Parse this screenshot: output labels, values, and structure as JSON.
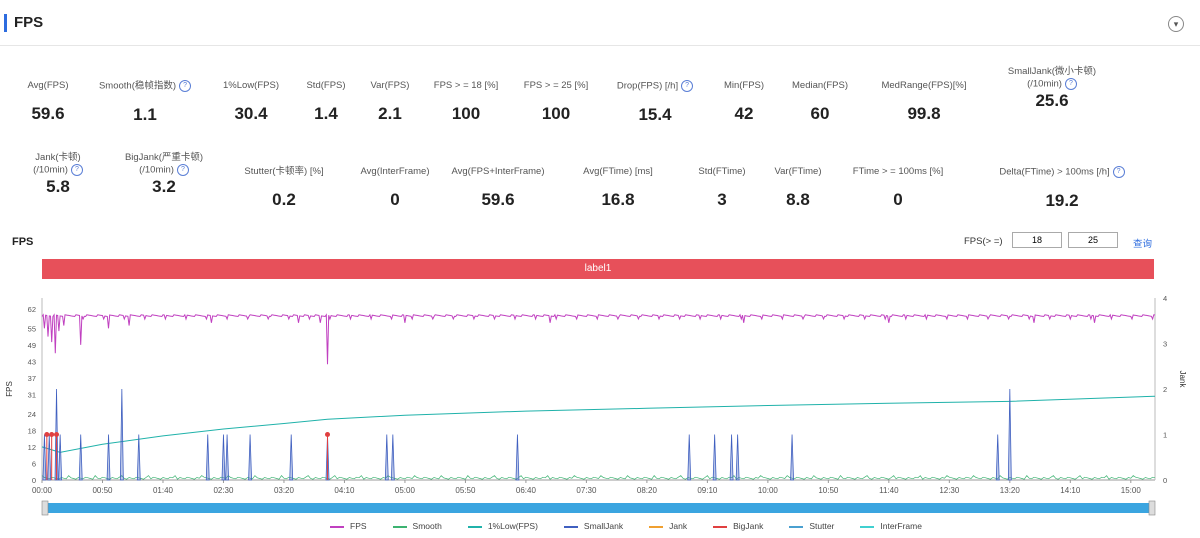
{
  "header": {
    "title": "FPS",
    "collapse_icon": "chevron-down-icon"
  },
  "stats_row1": [
    {
      "label": "Avg(FPS)",
      "value": "59.6",
      "help": false
    },
    {
      "label": "Smooth(稳帧指数)",
      "value": "1.1",
      "help": true
    },
    {
      "label": "1%Low(FPS)",
      "value": "30.4",
      "help": false
    },
    {
      "label": "Std(FPS)",
      "value": "1.4",
      "help": false
    },
    {
      "label": "Var(FPS)",
      "value": "2.1",
      "help": false
    },
    {
      "label": "FPS > = 18 [%]",
      "value": "100",
      "help": false
    },
    {
      "label": "FPS > = 25 [%]",
      "value": "100",
      "help": false
    },
    {
      "label": "Drop(FPS) [/h]",
      "value": "15.4",
      "help": true
    },
    {
      "label": "Min(FPS)",
      "value": "42",
      "help": false
    },
    {
      "label": "Median(FPS)",
      "value": "60",
      "help": false
    },
    {
      "label": "MedRange(FPS)[%]",
      "value": "99.8",
      "help": false
    },
    {
      "label": "SmallJank(微小卡顿)",
      "label2": "(/10min)",
      "value": "25.6",
      "help": true
    }
  ],
  "stats_row2": [
    {
      "label": "Jank(卡顿)",
      "label2": "(/10min)",
      "value": "5.8",
      "help": true
    },
    {
      "label": "BigJank(严重卡顿)",
      "label2": "(/10min)",
      "value": "3.2",
      "help": true
    },
    {
      "label": "Stutter(卡顿率) [%]",
      "value": "0.2",
      "help": false
    },
    {
      "label": "Avg(InterFrame)",
      "value": "0",
      "help": false
    },
    {
      "label": "Avg(FPS+InterFrame)",
      "value": "59.6",
      "help": false
    },
    {
      "label": "Avg(FTime) [ms]",
      "value": "16.8",
      "help": false
    },
    {
      "label": "Std(FTime)",
      "value": "3",
      "help": false
    },
    {
      "label": "Var(FTime)",
      "value": "8.8",
      "help": false
    },
    {
      "label": "FTime > = 100ms [%]",
      "value": "0",
      "help": false
    },
    {
      "label": "Delta(FTime) > 100ms [/h]",
      "value": "19.2",
      "help": true
    }
  ],
  "chart_controls": {
    "title": "FPS",
    "threshold_label": "FPS(> =)",
    "threshold1": "18",
    "threshold2": "25",
    "query_label": "查询",
    "label_bar": "label1"
  },
  "chart_data": {
    "type": "line",
    "ylabel_left": "FPS",
    "ylabel_right": "Jank",
    "y_left_ticks": [
      0,
      6,
      12,
      18,
      24,
      31,
      37,
      43,
      49,
      55,
      62
    ],
    "y_right_ticks": [
      0,
      1,
      2,
      3,
      4
    ],
    "ylim_left": [
      0,
      66
    ],
    "ylim_right": [
      0,
      4
    ],
    "x_ticks": [
      "00:00",
      "00:50",
      "01:40",
      "02:30",
      "03:20",
      "04:10",
      "05:00",
      "05:50",
      "06:40",
      "07:30",
      "08:20",
      "09:10",
      "10:00",
      "10:50",
      "11:40",
      "12:30",
      "13:20",
      "14:10",
      "15:00"
    ],
    "xlim_seconds": [
      0,
      920
    ],
    "fps_baseline": 59.6,
    "fps_dips": [
      {
        "t": 2,
        "fps": 55
      },
      {
        "t": 5,
        "fps": 52
      },
      {
        "t": 8,
        "fps": 50
      },
      {
        "t": 11,
        "fps": 46
      },
      {
        "t": 14,
        "fps": 54
      },
      {
        "t": 18,
        "fps": 56
      },
      {
        "t": 32,
        "fps": 49
      },
      {
        "t": 55,
        "fps": 55
      },
      {
        "t": 72,
        "fps": 56
      },
      {
        "t": 140,
        "fps": 57
      },
      {
        "t": 212,
        "fps": 57
      },
      {
        "t": 230,
        "fps": 57
      },
      {
        "t": 236,
        "fps": 42
      },
      {
        "t": 300,
        "fps": 57
      },
      {
        "t": 420,
        "fps": 57
      },
      {
        "t": 580,
        "fps": 57
      },
      {
        "t": 700,
        "fps": 57
      },
      {
        "t": 820,
        "fps": 57
      },
      {
        "t": 870,
        "fps": 57
      }
    ],
    "one_percent_low_line": [
      {
        "t": 0,
        "fps": 12
      },
      {
        "t": 15,
        "fps": 10
      },
      {
        "t": 50,
        "fps": 13
      },
      {
        "t": 100,
        "fps": 16
      },
      {
        "t": 150,
        "fps": 18.5
      },
      {
        "t": 200,
        "fps": 20.5
      },
      {
        "t": 236,
        "fps": 22
      },
      {
        "t": 300,
        "fps": 23.5
      },
      {
        "t": 400,
        "fps": 25
      },
      {
        "t": 500,
        "fps": 26
      },
      {
        "t": 600,
        "fps": 27
      },
      {
        "t": 700,
        "fps": 27.8
      },
      {
        "t": 800,
        "fps": 28.5
      },
      {
        "t": 920,
        "fps": 30.4
      }
    ],
    "small_jank_spikes": [
      {
        "t": 2,
        "jank": 1
      },
      {
        "t": 6,
        "jank": 1
      },
      {
        "t": 12,
        "jank": 2
      },
      {
        "t": 15,
        "jank": 1
      },
      {
        "t": 32,
        "jank": 1
      },
      {
        "t": 55,
        "jank": 1
      },
      {
        "t": 66,
        "jank": 2
      },
      {
        "t": 80,
        "jank": 1
      },
      {
        "t": 137,
        "jank": 1
      },
      {
        "t": 150,
        "jank": 1
      },
      {
        "t": 153,
        "jank": 1
      },
      {
        "t": 172,
        "jank": 1
      },
      {
        "t": 206,
        "jank": 1
      },
      {
        "t": 236,
        "jank": 1
      },
      {
        "t": 285,
        "jank": 1
      },
      {
        "t": 290,
        "jank": 1
      },
      {
        "t": 393,
        "jank": 1
      },
      {
        "t": 535,
        "jank": 1
      },
      {
        "t": 556,
        "jank": 1
      },
      {
        "t": 570,
        "jank": 1
      },
      {
        "t": 575,
        "jank": 1
      },
      {
        "t": 620,
        "jank": 1
      },
      {
        "t": 790,
        "jank": 1
      },
      {
        "t": 800,
        "jank": 2
      }
    ],
    "big_jank_points": [
      {
        "t": 4,
        "jank": 1
      },
      {
        "t": 8,
        "jank": 1
      },
      {
        "t": 12,
        "jank": 1
      },
      {
        "t": 236,
        "jank": 1
      }
    ],
    "legend": [
      {
        "name": "FPS",
        "color": "#c040c0"
      },
      {
        "name": "Smooth",
        "color": "#3cb371"
      },
      {
        "name": "1%Low(FPS)",
        "color": "#20b2aa"
      },
      {
        "name": "SmallJank",
        "color": "#4060c0"
      },
      {
        "name": "Jank",
        "color": "#f0a030"
      },
      {
        "name": "BigJank",
        "color": "#e04040"
      },
      {
        "name": "Stutter",
        "color": "#4aa0d0"
      },
      {
        "name": "InterFrame",
        "color": "#40d0d0"
      }
    ]
  }
}
